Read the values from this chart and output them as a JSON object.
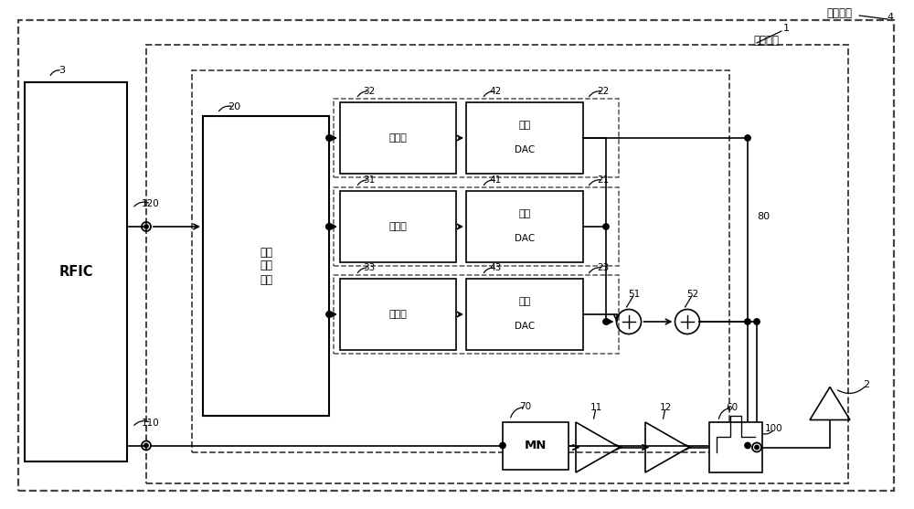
{
  "bg_color": "#ffffff",
  "labels": {
    "RFIC": "RFIC",
    "bias_ctrl": "偏置\n控制\n电路",
    "reg": "寄存器",
    "dac_top": "偏置",
    "dac_sub": "DAC",
    "MN": "MN",
    "comm_device": "通信装置",
    "high_freq": "高频模块"
  },
  "numbers": {
    "n1": "1",
    "n2": "2",
    "n3": "3",
    "n4": "4",
    "n11": "11",
    "n12": "12",
    "n20": "20",
    "n21": "21",
    "n22": "22",
    "n23": "23",
    "n31": "31",
    "n32": "32",
    "n33": "33",
    "n41": "41",
    "n42": "42",
    "n43": "43",
    "n51": "51",
    "n52": "52",
    "n60": "60",
    "n70": "70",
    "n80": "80",
    "n100": "100",
    "n110": "110",
    "n120": "120"
  }
}
